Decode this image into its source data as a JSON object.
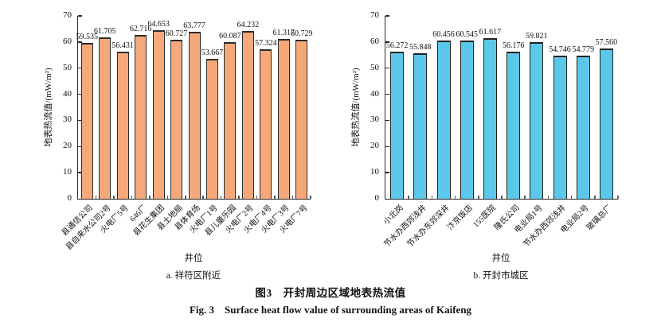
{
  "figure": {
    "caption_zh": "图3　开封周边区域地表热流值",
    "caption_en": "Fig. 3　Surface heat flow value of surrounding areas of Kaifeng"
  },
  "chart_data": [
    {
      "type": "bar",
      "title": "a. 祥符区附近",
      "xlabel": "井位",
      "ylabel": "地表热流值/(mW/m²)",
      "ylim": [
        0,
        70
      ],
      "yticks": [
        0,
        10,
        20,
        30,
        40,
        50,
        60,
        70
      ],
      "grid": false,
      "legend": false,
      "bar_color": "#F5A97B",
      "bar_border_color": "#2b2b2b",
      "categories": [
        "县通信公司",
        "县自来水公司2号",
        "火电厂5号",
        "646厂",
        "县花生集团",
        "县土地局",
        "县体育场",
        "火电厂1号",
        "县儿童乐园",
        "火电厂2号",
        "火电厂4号",
        "火电厂3号",
        "火电厂7号"
      ],
      "values": [
        59.535,
        61.705,
        56.431,
        62.716,
        64.653,
        60.727,
        63.777,
        53.667,
        60.087,
        64.232,
        57.324,
        61.317,
        60.729
      ]
    },
    {
      "type": "bar",
      "title": "b. 开封市城区",
      "xlabel": "井位",
      "ylabel": "地表热流值/(mW/m²)",
      "ylim": [
        0,
        70
      ],
      "yticks": [
        0,
        10,
        20,
        30,
        40,
        50,
        60,
        70
      ],
      "grid": false,
      "legend": false,
      "bar_color": "#5BC8EA",
      "bar_border_color": "#222222",
      "categories": [
        "小北岗",
        "节水办西郊浅井",
        "节水办东郊深井",
        "汴京饭店",
        "155医院",
        "隆氏公司",
        "电业局1号",
        "节水办西郊浅井",
        "电业局2号",
        "玻璃总厂"
      ],
      "values": [
        56.272,
        55.848,
        60.456,
        60.545,
        61.617,
        56.176,
        59.821,
        54.746,
        54.779,
        57.56
      ]
    }
  ]
}
